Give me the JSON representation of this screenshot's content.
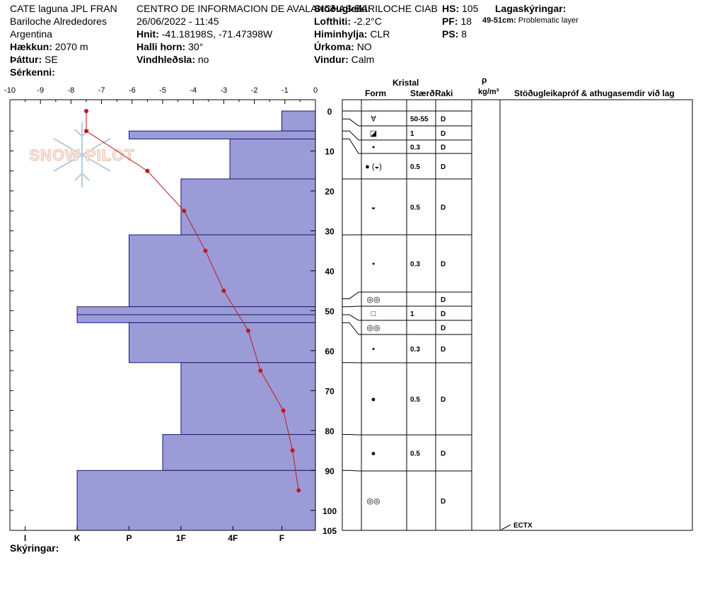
{
  "header": {
    "location": "CATE laguna JPL FRAN",
    "sublocation": "Bariloche Alrededores",
    "country": "Argentina",
    "elevation_label": "Hækkun:",
    "elevation_value": "2070 m",
    "aspect_label": "Þáttur:",
    "aspect_value": "SE",
    "specifics_label": "Sérkenni:",
    "organization": "CENTRO DE INFORMACION DE AVALANCHAS BARILOCHE CIAB",
    "datetime": "26/06/2022 - 11:45",
    "coords_label": "Hnit:",
    "coords_value": "-41.18198S, -71.47398W",
    "slope_label": "Halli horn:",
    "slope_value": "30°",
    "wind_loading_label": "Vindhleðsla:",
    "wind_loading_value": "no",
    "observer_label": "Stöðugleiki:",
    "air_temp_label": "Lofthiti:",
    "air_temp_value": "-2.2°C",
    "sky_label": "Himinhylja:",
    "sky_value": "CLR",
    "precip_label": "Úrkoma:",
    "precip_value": "NO",
    "wind_label": "Vindur:",
    "wind_value": "Calm",
    "hs_label": "HS:",
    "hs_value": "105",
    "pf_label": "PF:",
    "pf_value": "18",
    "ps_label": "PS:",
    "ps_value": "8",
    "layer_notes_label": "Lagaskýringar:",
    "layer_note_range": "49-51cm:",
    "layer_note_text": "Problematic layer"
  },
  "legend_label": "Skýringar:",
  "watermark": "SNOW PILOT",
  "columns": {
    "kristal": "Kristal",
    "form": "Form",
    "size": "Stærð",
    "moisture": "Raki",
    "density_symbol": "ρ",
    "density_unit": "kg/m³",
    "tests": "Stöðugleikapróf & athugasemdir við lag"
  },
  "test_result": "ECTX",
  "chart_data": {
    "type": "snow-profile",
    "temp_axis": {
      "ticks": [
        "-10",
        "-9",
        "-8",
        "-7",
        "-6",
        "-5",
        "-4",
        "-3",
        "-2",
        "-1",
        "0"
      ],
      "range": [
        -10,
        0
      ]
    },
    "depth_axis": {
      "ticks": [
        "0",
        "10",
        "20",
        "30",
        "40",
        "50",
        "60",
        "70",
        "80",
        "90",
        "100",
        "105"
      ],
      "range": [
        0,
        105
      ]
    },
    "hardness_axis": {
      "ticks": [
        "I",
        "K",
        "P",
        "1F",
        "4F",
        "F"
      ]
    },
    "grid": false,
    "hardness_layers": [
      {
        "top": 0,
        "bottom": 5,
        "temp_extent": -1.1
      },
      {
        "top": 5,
        "bottom": 7,
        "temp_extent": -6.1
      },
      {
        "top": 7,
        "bottom": 17,
        "temp_extent": -2.8
      },
      {
        "top": 17,
        "bottom": 31,
        "temp_extent": -4.4
      },
      {
        "top": 31,
        "bottom": 49,
        "temp_extent": -6.1
      },
      {
        "top": 49,
        "bottom": 51,
        "temp_extent": -7.8
      },
      {
        "top": 51,
        "bottom": 53,
        "temp_extent": -7.8
      },
      {
        "top": 53,
        "bottom": 63,
        "temp_extent": -6.1
      },
      {
        "top": 63,
        "bottom": 81,
        "temp_extent": -4.4
      },
      {
        "top": 81,
        "bottom": 90,
        "temp_extent": -5.0
      },
      {
        "top": 90,
        "bottom": 105,
        "temp_extent": -7.8
      }
    ],
    "temperature_profile": [
      {
        "depth": 0,
        "temp": -7.5
      },
      {
        "depth": 5,
        "temp": -7.5
      },
      {
        "depth": 15,
        "temp": -5.5
      },
      {
        "depth": 25,
        "temp": -4.3
      },
      {
        "depth": 35,
        "temp": -3.6
      },
      {
        "depth": 45,
        "temp": -3.0
      },
      {
        "depth": 55,
        "temp": -2.2
      },
      {
        "depth": 65,
        "temp": -1.8
      },
      {
        "depth": 75,
        "temp": -1.05
      },
      {
        "depth": 85,
        "temp": -0.75
      },
      {
        "depth": 95,
        "temp": -0.55
      }
    ],
    "layers": [
      {
        "top": 0,
        "bottom": 2,
        "form": "∀",
        "size": "50-55",
        "moisture": "D"
      },
      {
        "top": 2,
        "bottom": 5,
        "form": "◪",
        "size": "1",
        "moisture": "D"
      },
      {
        "top": 5,
        "bottom": 7,
        "form": "•",
        "size": "0.3",
        "moisture": "D"
      },
      {
        "top": 7,
        "bottom": 17,
        "form": "● (◒)",
        "size": "0.5",
        "moisture": "D"
      },
      {
        "top": 17,
        "bottom": 31,
        "form": "◒",
        "size": "0.5",
        "moisture": "D"
      },
      {
        "top": 31,
        "bottom": 49,
        "form": "•",
        "size": "0.3",
        "moisture": "D"
      },
      {
        "top": 49,
        "bottom": 51,
        "form": "◎◎",
        "size": "",
        "moisture": "D"
      },
      {
        "top": 51,
        "bottom": 53,
        "form": "□",
        "size": "1",
        "moisture": "D"
      },
      {
        "top": 53,
        "bottom": 63,
        "form": "◎◎",
        "size": "",
        "moisture": "D"
      },
      {
        "top": 63,
        "bottom": 81,
        "form": "•",
        "size": "0.3",
        "moisture": "D"
      },
      {
        "top": 81,
        "bottom": 90,
        "form": "●",
        "size": "0.5",
        "moisture": "D"
      },
      {
        "top": 90,
        "bottom": 105,
        "form": "●",
        "size": "0.5",
        "moisture": "D"
      },
      {
        "top": 90,
        "bottom": 105,
        "form": "◎◎",
        "size": "",
        "moisture": "D"
      }
    ],
    "colors": {
      "bar_fill": "#9b9bd7",
      "bar_stroke": "#1a1a7a",
      "temp_line": "#c0181f"
    }
  }
}
